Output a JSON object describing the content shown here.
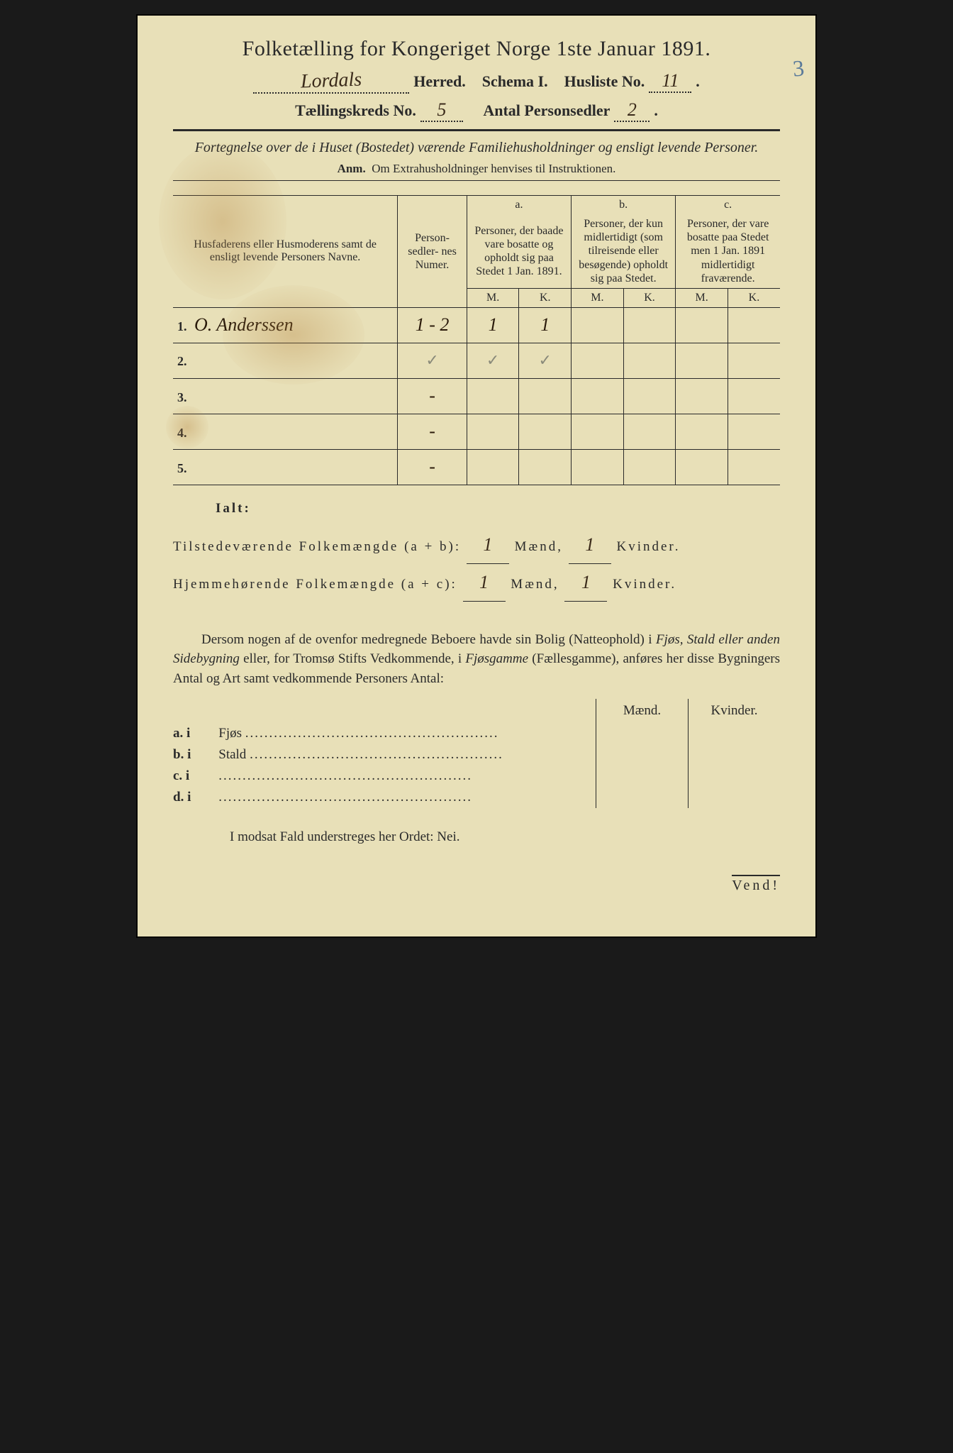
{
  "colors": {
    "paper": "#e8e0b8",
    "ink": "#2a2a2a",
    "handwriting": "#3a2a1a",
    "pencil": "#8a8a7a",
    "blue_pencil": "#5a7a9a",
    "stain": "rgba(180,130,60,0.35)"
  },
  "header": {
    "title": "Folketælling for Kongeriget Norge 1ste Januar 1891.",
    "herred_value": "Lordals",
    "herred_label": "Herred.",
    "schema_label": "Schema I.",
    "husliste_label": "Husliste No.",
    "husliste_value": "11",
    "kreds_label": "Tællingskreds No.",
    "kreds_value": "5",
    "antal_label": "Antal Personsedler",
    "antal_value": "2",
    "pencil_margin": "3"
  },
  "subtitle": {
    "main": "Fortegnelse over de i Huset (Bostedet) værende Familiehusholdninger og ensligt levende Personer.",
    "anm_label": "Anm.",
    "anm_text": "Om Extrahusholdninger henvises til Instruktionen."
  },
  "table": {
    "col_name": "Husfaderens eller Husmoderens samt de ensligt levende Personers Navne.",
    "col_numer": "Person-\nsedler-\nnes\nNumer.",
    "col_a_tag": "a.",
    "col_a": "Personer, der baade vare bosatte og opholdt sig paa Stedet 1 Jan. 1891.",
    "col_b_tag": "b.",
    "col_b": "Personer, der kun midlertidigt (som tilreisende eller besøgende) opholdt sig paa Stedet.",
    "col_c_tag": "c.",
    "col_c": "Personer, der vare bosatte paa Stedet men 1 Jan. 1891 midlertidigt fraværende.",
    "mk_m": "M.",
    "mk_k": "K.",
    "rows": [
      {
        "n": "1.",
        "name": "O. Anderssen",
        "numer": "1 - 2",
        "a_m": "1",
        "a_k": "1",
        "b_m": "",
        "b_k": "",
        "c_m": "",
        "c_k": ""
      },
      {
        "n": "2.",
        "name": "",
        "numer": "✓",
        "a_m": "✓",
        "a_k": "✓",
        "b_m": "",
        "b_k": "",
        "c_m": "",
        "c_k": "",
        "pencil": true
      },
      {
        "n": "3.",
        "name": "",
        "numer": "-",
        "a_m": "",
        "a_k": "",
        "b_m": "",
        "b_k": "",
        "c_m": "",
        "c_k": ""
      },
      {
        "n": "4.",
        "name": "",
        "numer": "-",
        "a_m": "",
        "a_k": "",
        "b_m": "",
        "b_k": "",
        "c_m": "",
        "c_k": ""
      },
      {
        "n": "5.",
        "name": "",
        "numer": "-",
        "a_m": "",
        "a_k": "",
        "b_m": "",
        "b_k": "",
        "c_m": "",
        "c_k": ""
      }
    ]
  },
  "ialt": {
    "label": "Ialt:",
    "line1_label": "Tilstedeværende Folkemængde (a + b):",
    "line2_label": "Hjemmehørende Folkemængde (a + c):",
    "maend": "Mænd,",
    "kvinder": "Kvinder.",
    "l1_m": "1",
    "l1_k": "1",
    "l2_m": "1",
    "l2_k": "1"
  },
  "para": {
    "text_1": "Dersom nogen af de ovenfor medregnede Beboere havde sin Bolig (Natteophold) i ",
    "text_2": "Fjøs, Stald eller anden Sidebygning",
    "text_3": " eller, for Tromsø Stifts Vedkommende, i ",
    "text_4": "Fjøsgamme",
    "text_5": " (Fællesgamme), anføres her disse Bygningers Antal og Art samt vedkommende Personers Antal:"
  },
  "outbuild": {
    "hdr_m": "Mænd.",
    "hdr_k": "Kvinder.",
    "rows": [
      {
        "tag": "a.  i",
        "label": "Fjøs"
      },
      {
        "tag": "b.  i",
        "label": "Stald"
      },
      {
        "tag": "c.  i",
        "label": ""
      },
      {
        "tag": "d.  i",
        "label": ""
      }
    ]
  },
  "nei_line": "I modsat Fald understreges her Ordet: Nei.",
  "vend": "Vend!"
}
